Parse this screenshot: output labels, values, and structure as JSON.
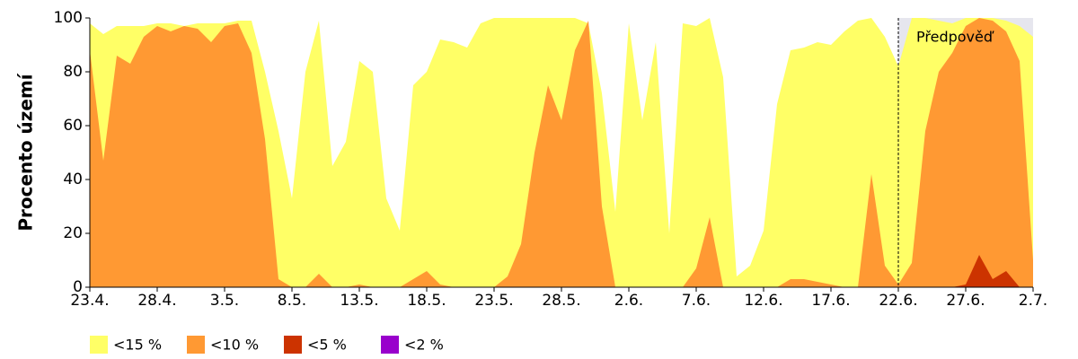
{
  "chart_data": {
    "type": "area",
    "ylabel": "Procento území",
    "categories": [
      "23.4.",
      null,
      null,
      null,
      null,
      "28.4.",
      null,
      null,
      null,
      null,
      "3.5.",
      null,
      null,
      null,
      null,
      "8.5.",
      null,
      null,
      null,
      null,
      "13.5.",
      null,
      null,
      null,
      null,
      "18.5.",
      null,
      null,
      null,
      null,
      "23.5.",
      null,
      null,
      null,
      null,
      "28.5.",
      null,
      null,
      null,
      null,
      "2.6.",
      null,
      null,
      null,
      null,
      "7.6.",
      null,
      null,
      null,
      null,
      "12.6.",
      null,
      null,
      null,
      null,
      "17.6.",
      null,
      null,
      null,
      null,
      "22.6.",
      null,
      null,
      null,
      null,
      "27.6.",
      null,
      null,
      null,
      null,
      "2.7."
    ],
    "series": [
      {
        "name": "<15 %",
        "color": "#ffff66",
        "values": [
          98,
          94,
          97,
          97,
          97,
          98,
          98,
          97,
          98,
          98,
          98,
          99,
          99,
          80,
          58,
          33,
          80,
          99,
          45,
          54,
          84,
          80,
          33,
          21,
          75,
          80,
          92,
          91,
          89,
          98,
          100,
          100,
          100,
          100,
          100,
          100,
          100,
          98,
          72,
          28,
          98,
          62,
          91,
          20,
          98,
          97,
          100,
          78,
          4,
          8,
          21,
          68,
          88,
          89,
          91,
          90,
          95,
          99,
          100,
          93,
          82,
          100,
          100,
          99,
          98,
          100,
          100,
          100,
          99,
          97,
          93
        ]
      },
      {
        "name": "<10 %",
        "color": "#ff9933",
        "values": [
          88,
          47,
          86,
          83,
          93,
          97,
          95,
          97,
          96,
          91,
          97,
          98,
          87,
          55,
          3,
          0,
          0,
          5,
          0,
          0,
          1,
          0,
          0,
          0,
          3,
          6,
          1,
          0,
          0,
          0,
          0,
          4,
          16,
          50,
          75,
          62,
          88,
          99,
          30,
          0,
          0,
          0,
          0,
          0,
          0,
          7,
          26,
          0,
          0,
          0,
          0,
          0,
          3,
          3,
          2,
          1,
          0,
          0,
          42,
          8,
          1,
          9,
          58,
          80,
          87,
          97,
          100,
          99,
          95,
          84,
          10
        ]
      },
      {
        "name": "<5 %",
        "color": "#cc3300",
        "values": [
          0,
          0,
          0,
          0,
          0,
          0,
          0,
          0,
          0,
          0,
          0,
          0,
          0,
          0,
          0,
          0,
          0,
          0,
          0,
          0,
          0,
          0,
          0,
          0,
          0,
          0,
          0,
          0,
          0,
          0,
          0,
          0,
          0,
          0,
          0,
          0,
          0,
          0,
          0,
          0,
          0,
          0,
          0,
          0,
          0,
          0,
          0,
          0,
          0,
          0,
          0,
          0,
          0,
          0,
          0,
          0,
          0,
          0,
          0,
          0,
          0,
          0,
          0,
          0,
          0,
          1,
          12,
          3,
          6,
          0,
          0
        ]
      },
      {
        "name": "<2 %",
        "color": "#9900cc",
        "values": [
          0,
          0,
          0,
          0,
          0,
          0,
          0,
          0,
          0,
          0,
          0,
          0,
          0,
          0,
          0,
          0,
          0,
          0,
          0,
          0,
          0,
          0,
          0,
          0,
          0,
          0,
          0,
          0,
          0,
          0,
          0,
          0,
          0,
          0,
          0,
          0,
          0,
          0,
          0,
          0,
          0,
          0,
          0,
          0,
          0,
          0,
          0,
          0,
          0,
          0,
          0,
          0,
          0,
          0,
          0,
          0,
          0,
          0,
          0,
          0,
          0,
          0,
          0,
          0,
          0,
          0,
          0,
          0,
          0,
          0,
          0
        ]
      }
    ],
    "annotation": {
      "text": "Předpověď",
      "x": "22.6."
    },
    "ylim": [
      0,
      100
    ],
    "yticks": [
      0,
      20,
      40,
      60,
      80,
      100
    ]
  }
}
